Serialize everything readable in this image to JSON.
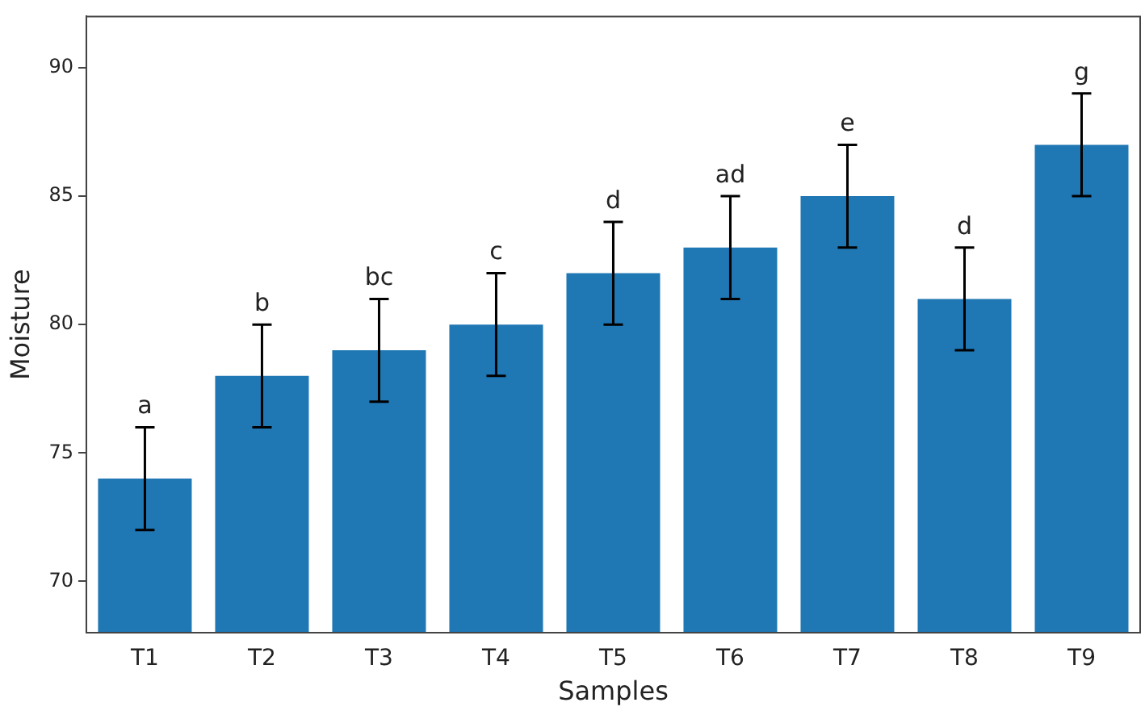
{
  "chart_data": {
    "type": "bar",
    "xlabel": "Samples",
    "ylabel": "Moisture",
    "categories": [
      "T1",
      "T2",
      "T3",
      "T4",
      "T5",
      "T6",
      "T7",
      "T8",
      "T9"
    ],
    "values": [
      74,
      78,
      79,
      80,
      82,
      83,
      85,
      81,
      87
    ],
    "errors": [
      2,
      2,
      2,
      2,
      2,
      2,
      2,
      2,
      2
    ],
    "color": "#1f77b4",
    "ylim": [
      68,
      92
    ],
    "yticks": [
      70,
      75,
      80,
      85,
      90
    ],
    "grid": false,
    "legend": false,
    "annotations": [
      {
        "text": "a",
        "x": "T1",
        "y": 76
      },
      {
        "text": "b",
        "x": "T2",
        "y": 80
      },
      {
        "text": "bc",
        "x": "T3",
        "y": 81
      },
      {
        "text": "c",
        "x": "T4",
        "y": 82
      },
      {
        "text": "d",
        "x": "T5",
        "y": 84
      },
      {
        "text": "ad",
        "x": "T6",
        "y": 85
      },
      {
        "text": "e",
        "x": "T7",
        "y": 87
      },
      {
        "text": "d",
        "x": "T8",
        "y": 83
      },
      {
        "text": "g",
        "x": "T9",
        "y": 89
      }
    ]
  }
}
